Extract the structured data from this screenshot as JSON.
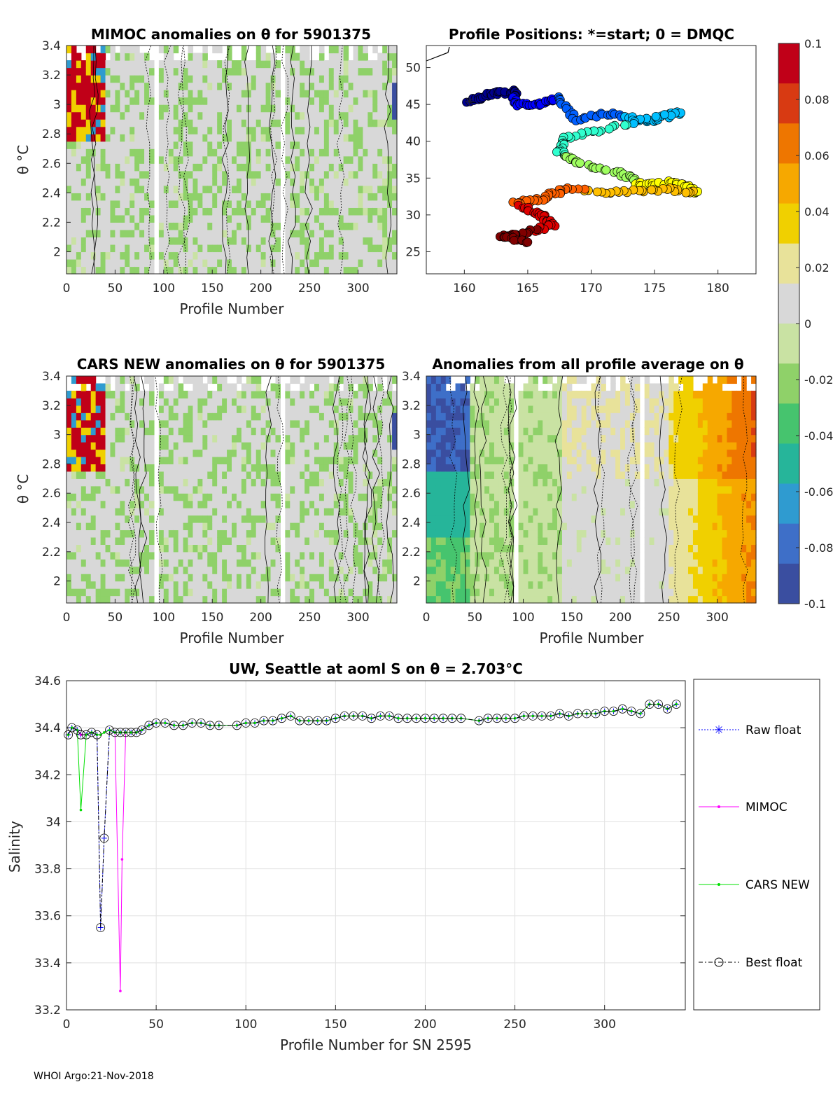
{
  "footer": "WHOI Argo:21-Nov-2018",
  "colorbar": {
    "ticks": [
      "0.1",
      "0.08",
      "0.06",
      "0.04",
      "0.02",
      "0",
      "-0.02",
      "-0.04",
      "-0.06",
      "-0.08",
      "-0.1"
    ],
    "range": [
      -0.1,
      0.1
    ],
    "colors": [
      "#3a4ea0",
      "#3e6fc8",
      "#2f9bd0",
      "#26b59a",
      "#46c46e",
      "#8fd169",
      "#c9e2a3",
      "#d8d8d8",
      "#e8e29a",
      "#f0d000",
      "#f6a800",
      "#ee7600",
      "#d83a12",
      "#c00018"
    ]
  },
  "chart_data": [
    {
      "id": "mimoc",
      "type": "heatmap",
      "title": "MIMOC anomalies on θ  for 5901375",
      "xlabel": "Profile Number",
      "ylabel": "θ °C",
      "xlim": [
        0,
        340
      ],
      "ylim": [
        1.85,
        3.4
      ],
      "xticks": [
        "0",
        "50",
        "100",
        "150",
        "200",
        "250",
        "300"
      ],
      "yticks": [
        "2",
        "2.2",
        "2.4",
        "2.6",
        "2.8",
        "3",
        "3.2",
        "3.4"
      ]
    },
    {
      "id": "positions",
      "type": "scatter",
      "title": "Profile Positions: *=start; 0 = DMQC",
      "xlim": [
        157,
        183
      ],
      "ylim": [
        22,
        53
      ],
      "xticks": [
        "160",
        "165",
        "170",
        "175",
        "180"
      ],
      "yticks": [
        "25",
        "30",
        "35",
        "40",
        "45",
        "50"
      ],
      "track": [
        {
          "lon": 160.4,
          "lat": 45.4
        },
        {
          "lon": 162.0,
          "lat": 46.3
        },
        {
          "lon": 163.8,
          "lat": 46.8
        },
        {
          "lon": 164.2,
          "lat": 45.0
        },
        {
          "lon": 166.0,
          "lat": 45.1
        },
        {
          "lon": 167.5,
          "lat": 45.9
        },
        {
          "lon": 168.8,
          "lat": 43.0
        },
        {
          "lon": 171.5,
          "lat": 43.8
        },
        {
          "lon": 174.5,
          "lat": 42.6
        },
        {
          "lon": 177.0,
          "lat": 44.0
        },
        {
          "lon": 172.0,
          "lat": 42.0
        },
        {
          "lon": 168.0,
          "lat": 40.5
        },
        {
          "lon": 167.5,
          "lat": 38.5
        },
        {
          "lon": 169.0,
          "lat": 37.0
        },
        {
          "lon": 172.5,
          "lat": 35.5
        },
        {
          "lon": 174.0,
          "lat": 34.0
        },
        {
          "lon": 176.5,
          "lat": 34.5
        },
        {
          "lon": 178.5,
          "lat": 33.0
        },
        {
          "lon": 176.0,
          "lat": 33.5
        },
        {
          "lon": 172.0,
          "lat": 33.0
        },
        {
          "lon": 168.0,
          "lat": 33.5
        },
        {
          "lon": 166.0,
          "lat": 32.2
        },
        {
          "lon": 164.0,
          "lat": 31.5
        },
        {
          "lon": 166.0,
          "lat": 30.0
        },
        {
          "lon": 167.0,
          "lat": 28.5
        },
        {
          "lon": 164.5,
          "lat": 27.5
        },
        {
          "lon": 163.0,
          "lat": 27.0
        },
        {
          "lon": 165.0,
          "lat": 26.3
        }
      ]
    },
    {
      "id": "cars",
      "type": "heatmap",
      "title": "CARS NEW anomalies on θ for 5901375",
      "xlabel": "Profile Number",
      "ylabel": "θ °C",
      "xlim": [
        0,
        340
      ],
      "ylim": [
        1.85,
        3.4
      ],
      "xticks": [
        "0",
        "50",
        "100",
        "150",
        "200",
        "250",
        "300"
      ],
      "yticks": [
        "2",
        "2.2",
        "2.4",
        "2.6",
        "2.8",
        "3",
        "3.2",
        "3.4"
      ]
    },
    {
      "id": "avg",
      "type": "heatmap",
      "title": "Anomalies from all profile average on θ",
      "xlabel": "Profile Number",
      "xlim": [
        0,
        340
      ],
      "ylim": [
        1.85,
        3.4
      ],
      "xticks": [
        "0",
        "50",
        "100",
        "150",
        "200",
        "250",
        "300"
      ],
      "yticks": [
        "2",
        "2.2",
        "2.4",
        "2.6",
        "2.8",
        "3",
        "3.2",
        "3.4"
      ]
    },
    {
      "id": "salinity",
      "type": "line",
      "title": "UW, Seattle at aoml S on θ = 2.703°C",
      "xlabel": "Profile Number for SN 2595",
      "ylabel": "Salinity",
      "xlim": [
        0,
        345
      ],
      "ylim": [
        33.2,
        34.6
      ],
      "xticks": [
        "0",
        "50",
        "100",
        "150",
        "200",
        "250",
        "300"
      ],
      "yticks": [
        "34.6",
        "34.4",
        "34.2",
        "34",
        "33.8",
        "33.6",
        "33.4",
        "33.2"
      ],
      "legend": [
        "Raw float",
        "MIMOC",
        "CARS NEW",
        "Best float"
      ],
      "series": [
        {
          "name": "Raw float",
          "x": [
            1,
            3,
            6,
            8,
            11,
            14,
            17,
            19,
            21,
            24,
            27,
            30,
            33,
            36,
            39,
            42,
            46,
            50,
            55,
            60,
            65,
            70,
            75,
            80,
            85,
            95,
            100,
            105,
            110,
            115,
            120,
            125,
            130,
            135,
            140,
            145,
            150,
            155,
            160,
            165,
            170,
            175,
            180,
            185,
            190,
            195,
            200,
            205,
            210,
            215,
            220,
            230,
            235,
            240,
            245,
            250,
            255,
            260,
            265,
            270,
            275,
            280,
            285,
            290,
            295,
            300,
            305,
            310,
            315,
            320,
            325,
            330,
            335,
            340
          ],
          "y": [
            34.37,
            34.4,
            34.39,
            34.37,
            34.37,
            34.38,
            34.37,
            33.55,
            33.93,
            34.39,
            34.38,
            34.38,
            34.38,
            34.38,
            34.38,
            34.39,
            34.41,
            34.42,
            34.42,
            34.41,
            34.41,
            34.42,
            34.42,
            34.41,
            34.41,
            34.41,
            34.42,
            34.42,
            34.43,
            34.43,
            34.44,
            34.45,
            34.43,
            34.43,
            34.43,
            34.43,
            34.44,
            34.45,
            34.45,
            34.45,
            34.44,
            34.45,
            34.45,
            34.44,
            34.44,
            34.44,
            34.44,
            34.44,
            34.44,
            34.44,
            34.44,
            34.43,
            34.44,
            34.44,
            34.44,
            34.44,
            34.45,
            34.45,
            34.45,
            34.45,
            34.46,
            34.45,
            34.46,
            34.46,
            34.46,
            34.47,
            34.47,
            34.48,
            34.47,
            34.46,
            34.5,
            34.5,
            34.48,
            34.5
          ]
        },
        {
          "name": "MIMOC",
          "x": [
            1,
            3,
            6,
            8,
            11,
            14,
            17,
            19,
            21,
            24,
            27,
            30,
            31,
            33,
            36,
            39,
            42,
            46,
            50,
            55,
            60,
            65,
            70,
            75,
            80,
            85,
            95,
            100,
            105,
            110,
            115,
            120,
            125,
            130,
            135,
            140,
            145,
            150,
            155,
            160,
            165,
            170,
            175,
            180,
            185,
            190,
            195,
            200,
            205,
            210,
            215,
            220,
            230,
            235,
            240,
            245,
            250,
            255,
            260,
            265,
            270,
            275,
            280,
            285,
            290,
            295,
            300,
            305,
            310,
            315,
            320,
            325,
            330,
            335,
            340
          ],
          "y": [
            34.37,
            34.4,
            34.39,
            34.37,
            34.37,
            34.38,
            34.37,
            34.37,
            34.38,
            34.39,
            34.38,
            33.28,
            33.84,
            34.38,
            34.38,
            34.38,
            34.39,
            34.41,
            34.42,
            34.42,
            34.41,
            34.41,
            34.42,
            34.42,
            34.41,
            34.41,
            34.41,
            34.42,
            34.42,
            34.43,
            34.43,
            34.44,
            34.45,
            34.43,
            34.43,
            34.43,
            34.43,
            34.44,
            34.45,
            34.45,
            34.45,
            34.44,
            34.45,
            34.45,
            34.44,
            34.44,
            34.44,
            34.44,
            34.44,
            34.44,
            34.44,
            34.44,
            34.43,
            34.44,
            34.44,
            34.44,
            34.44,
            34.45,
            34.45,
            34.45,
            34.45,
            34.46,
            34.45,
            34.46,
            34.46,
            34.46,
            34.47,
            34.47,
            34.48,
            34.47,
            34.46,
            34.5,
            34.5,
            34.48,
            34.5
          ]
        },
        {
          "name": "CARS NEW",
          "x": [
            1,
            3,
            6,
            8,
            11,
            14,
            17,
            19,
            21,
            24,
            27,
            30,
            33,
            36,
            39,
            42,
            46,
            50,
            55,
            60,
            65,
            70,
            75,
            80,
            85,
            95,
            100,
            105,
            110,
            115,
            120,
            125,
            130,
            135,
            140,
            145,
            150,
            155,
            160,
            165,
            170,
            175,
            180,
            185,
            190,
            195,
            200,
            205,
            210,
            215,
            220,
            230,
            235,
            240,
            245,
            250,
            255,
            260,
            265,
            270,
            275,
            280,
            285,
            290,
            295,
            300,
            305,
            310,
            315,
            320,
            325,
            330,
            335,
            340
          ],
          "y": [
            34.37,
            34.4,
            34.39,
            34.05,
            34.37,
            34.38,
            34.37,
            34.37,
            34.38,
            34.39,
            34.38,
            34.38,
            34.38,
            34.38,
            34.38,
            34.39,
            34.41,
            34.42,
            34.42,
            34.41,
            34.41,
            34.42,
            34.42,
            34.41,
            34.41,
            34.41,
            34.42,
            34.42,
            34.43,
            34.43,
            34.44,
            34.45,
            34.43,
            34.43,
            34.43,
            34.43,
            34.44,
            34.45,
            34.45,
            34.45,
            34.44,
            34.45,
            34.45,
            34.44,
            34.44,
            34.44,
            34.44,
            34.44,
            34.44,
            34.44,
            34.44,
            34.43,
            34.44,
            34.44,
            34.44,
            34.44,
            34.45,
            34.45,
            34.45,
            34.45,
            34.46,
            34.45,
            34.46,
            34.46,
            34.46,
            34.47,
            34.47,
            34.48,
            34.47,
            34.46,
            34.5,
            34.5,
            34.48,
            34.5
          ]
        },
        {
          "name": "Best float",
          "x": [
            1,
            3,
            6,
            8,
            11,
            14,
            17,
            19,
            21,
            24,
            27,
            30,
            33,
            36,
            39,
            42,
            46,
            50,
            55,
            60,
            65,
            70,
            75,
            80,
            85,
            95,
            100,
            105,
            110,
            115,
            120,
            125,
            130,
            135,
            140,
            145,
            150,
            155,
            160,
            165,
            170,
            175,
            180,
            185,
            190,
            195,
            200,
            205,
            210,
            215,
            220,
            230,
            235,
            240,
            245,
            250,
            255,
            260,
            265,
            270,
            275,
            280,
            285,
            290,
            295,
            300,
            305,
            310,
            315,
            320,
            325,
            330,
            335,
            340
          ],
          "y": [
            34.37,
            34.4,
            34.39,
            34.37,
            34.37,
            34.38,
            34.37,
            33.55,
            33.93,
            34.39,
            34.38,
            34.38,
            34.38,
            34.38,
            34.38,
            34.39,
            34.41,
            34.42,
            34.42,
            34.41,
            34.41,
            34.42,
            34.42,
            34.41,
            34.41,
            34.41,
            34.42,
            34.42,
            34.43,
            34.43,
            34.44,
            34.45,
            34.43,
            34.43,
            34.43,
            34.43,
            34.44,
            34.45,
            34.45,
            34.45,
            34.44,
            34.45,
            34.45,
            34.44,
            34.44,
            34.44,
            34.44,
            34.44,
            34.44,
            34.44,
            34.44,
            34.43,
            34.44,
            34.44,
            34.44,
            34.44,
            34.45,
            34.45,
            34.45,
            34.45,
            34.46,
            34.45,
            34.46,
            34.46,
            34.46,
            34.47,
            34.47,
            34.48,
            34.47,
            34.46,
            34.5,
            34.5,
            34.48,
            34.5
          ]
        }
      ]
    }
  ]
}
